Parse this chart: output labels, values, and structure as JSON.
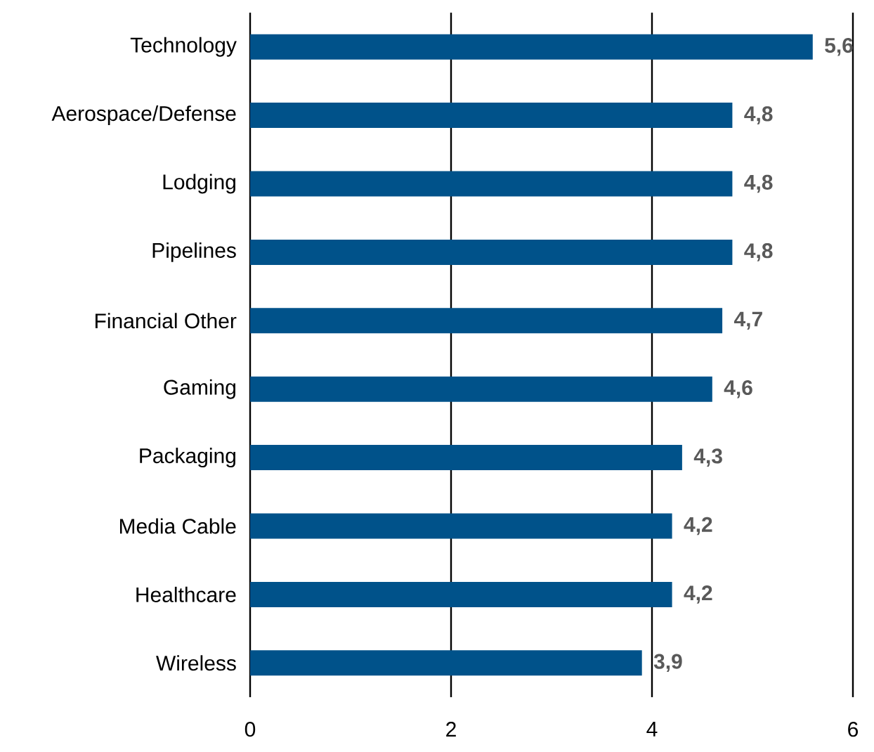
{
  "chart_data": {
    "type": "bar",
    "orientation": "horizontal",
    "categories": [
      "Technology",
      "Aerospace/Defense",
      "Lodging",
      "Pipelines",
      "Financial Other",
      "Gaming",
      "Packaging",
      "Media Cable",
      "Healthcare",
      "Wireless"
    ],
    "values": [
      5.6,
      4.8,
      4.8,
      4.8,
      4.7,
      4.6,
      4.3,
      4.2,
      4.2,
      3.9
    ],
    "value_labels": [
      "5,6",
      "4,8",
      "4,8",
      "4,8",
      "4,7",
      "4,6",
      "4,3",
      "4,2",
      "4,2",
      "3,9"
    ],
    "color": "#00528a",
    "xlim": [
      0,
      6
    ],
    "xticks": [
      0,
      2,
      4,
      6
    ],
    "grid": "x"
  }
}
